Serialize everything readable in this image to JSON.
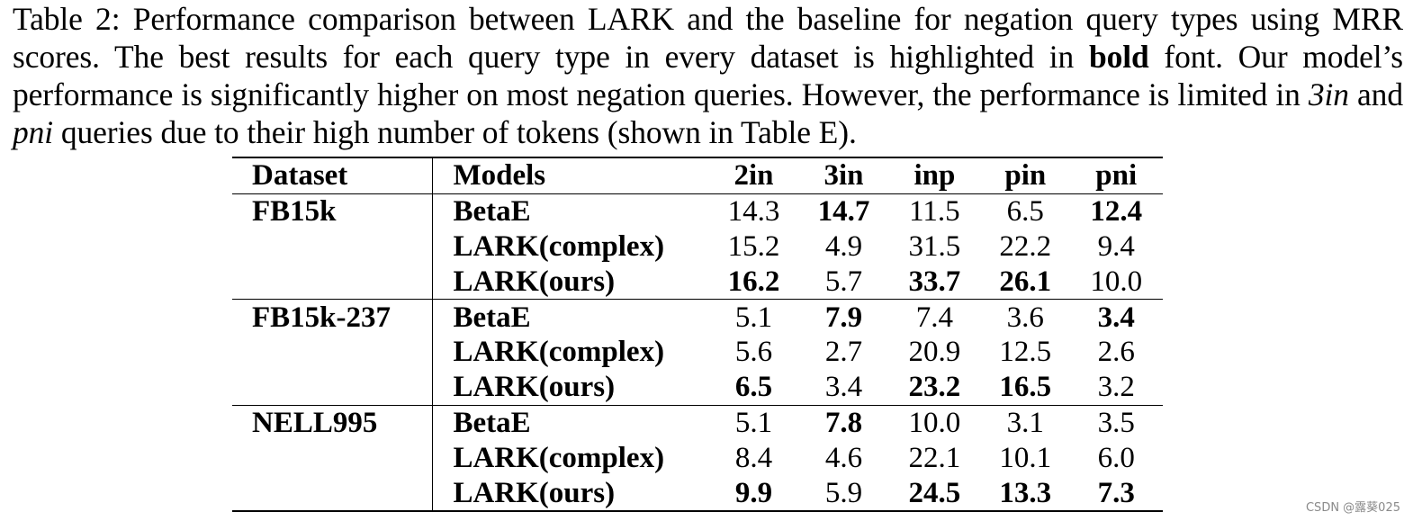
{
  "caption": {
    "part1": "Table 2: Performance comparison between LARK and the baseline for negation query types using MRR scores. The best results for each query type in every dataset is highlighted in ",
    "bold_word": "bold",
    "part2": " font. Our model’s performance is significantly higher on most negation queries. However, the performance is limited in ",
    "italic_1": "3in",
    "part3": " and ",
    "italic_2": "pni",
    "part4": " queries due to their high number of tokens (shown in Table E)."
  },
  "table": {
    "headers": [
      "Dataset",
      "Models",
      "2in",
      "3in",
      "inp",
      "pin",
      "pni"
    ],
    "groups": [
      {
        "dataset": "FB15k",
        "rows": [
          {
            "model": "BetaE",
            "values": [
              "14.3",
              "14.7",
              "11.5",
              "6.5",
              "12.4"
            ],
            "bold": [
              false,
              true,
              false,
              false,
              true
            ]
          },
          {
            "model": "LARK(complex)",
            "values": [
              "15.2",
              "4.9",
              "31.5",
              "22.2",
              "9.4"
            ],
            "bold": [
              false,
              false,
              false,
              false,
              false
            ]
          },
          {
            "model": "LARK(ours)",
            "values": [
              "16.2",
              "5.7",
              "33.7",
              "26.1",
              "10.0"
            ],
            "bold": [
              true,
              false,
              true,
              true,
              false
            ]
          }
        ]
      },
      {
        "dataset": "FB15k-237",
        "rows": [
          {
            "model": "BetaE",
            "values": [
              "5.1",
              "7.9",
              "7.4",
              "3.6",
              "3.4"
            ],
            "bold": [
              false,
              true,
              false,
              false,
              true
            ]
          },
          {
            "model": "LARK(complex)",
            "values": [
              "5.6",
              "2.7",
              "20.9",
              "12.5",
              "2.6"
            ],
            "bold": [
              false,
              false,
              false,
              false,
              false
            ]
          },
          {
            "model": "LARK(ours)",
            "values": [
              "6.5",
              "3.4",
              "23.2",
              "16.5",
              "3.2"
            ],
            "bold": [
              true,
              false,
              true,
              true,
              false
            ]
          }
        ]
      },
      {
        "dataset": "NELL995",
        "rows": [
          {
            "model": "BetaE",
            "values": [
              "5.1",
              "7.8",
              "10.0",
              "3.1",
              "3.5"
            ],
            "bold": [
              false,
              true,
              false,
              false,
              false
            ]
          },
          {
            "model": "LARK(complex)",
            "values": [
              "8.4",
              "4.6",
              "22.1",
              "10.1",
              "6.0"
            ],
            "bold": [
              false,
              false,
              false,
              false,
              false
            ]
          },
          {
            "model": "LARK(ours)",
            "values": [
              "9.9",
              "5.9",
              "24.5",
              "13.3",
              "7.3"
            ],
            "bold": [
              true,
              false,
              true,
              true,
              true
            ]
          }
        ]
      }
    ]
  },
  "watermark": "CSDN @露葵025"
}
